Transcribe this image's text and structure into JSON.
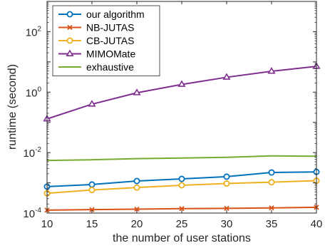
{
  "chart_data": {
    "type": "line",
    "title": "",
    "xlabel": "the number of user stations",
    "ylabel": "runtime (second)",
    "y_scale": "log",
    "xlim": [
      10,
      40
    ],
    "ylim": [
      0.0001,
      1000
    ],
    "grid": false,
    "legend_position": "top-left",
    "x": [
      10,
      15,
      20,
      25,
      30,
      35,
      40
    ],
    "x_ticks": [
      "10",
      "15",
      "20",
      "25",
      "30",
      "35",
      "40"
    ],
    "y_ticks": [
      {
        "value": 0.0001,
        "base": "10",
        "exp": "-4"
      },
      {
        "value": 0.01,
        "base": "10",
        "exp": "-2"
      },
      {
        "value": 1,
        "base": "10",
        "exp": "0"
      },
      {
        "value": 100,
        "base": "10",
        "exp": "2"
      }
    ],
    "series": [
      {
        "name": "our algorithm",
        "color": "#0072BD",
        "marker": "circle",
        "values": [
          0.00075,
          0.00088,
          0.00115,
          0.00135,
          0.0016,
          0.0022,
          0.0023
        ]
      },
      {
        "name": "NB-JUTAS",
        "color": "#D95319",
        "marker": "x",
        "values": [
          0.000125,
          0.00013,
          0.000135,
          0.00014,
          0.000143,
          0.000148,
          0.000155
        ]
      },
      {
        "name": "CB-JUTAS",
        "color": "#EDB120",
        "marker": "circle",
        "values": [
          0.00045,
          0.00058,
          0.0007,
          0.00083,
          0.00095,
          0.00105,
          0.00118
        ]
      },
      {
        "name": "MIMOMate",
        "color": "#7E2F8E",
        "marker": "triangle",
        "values": [
          0.13,
          0.4,
          0.95,
          1.8,
          3.1,
          4.9,
          7.1
        ]
      },
      {
        "name": "exhaustive",
        "color": "#77AC30",
        "marker": "none",
        "values": [
          0.0055,
          0.0058,
          0.0063,
          0.0066,
          0.007,
          0.0078,
          0.0076
        ]
      }
    ]
  }
}
